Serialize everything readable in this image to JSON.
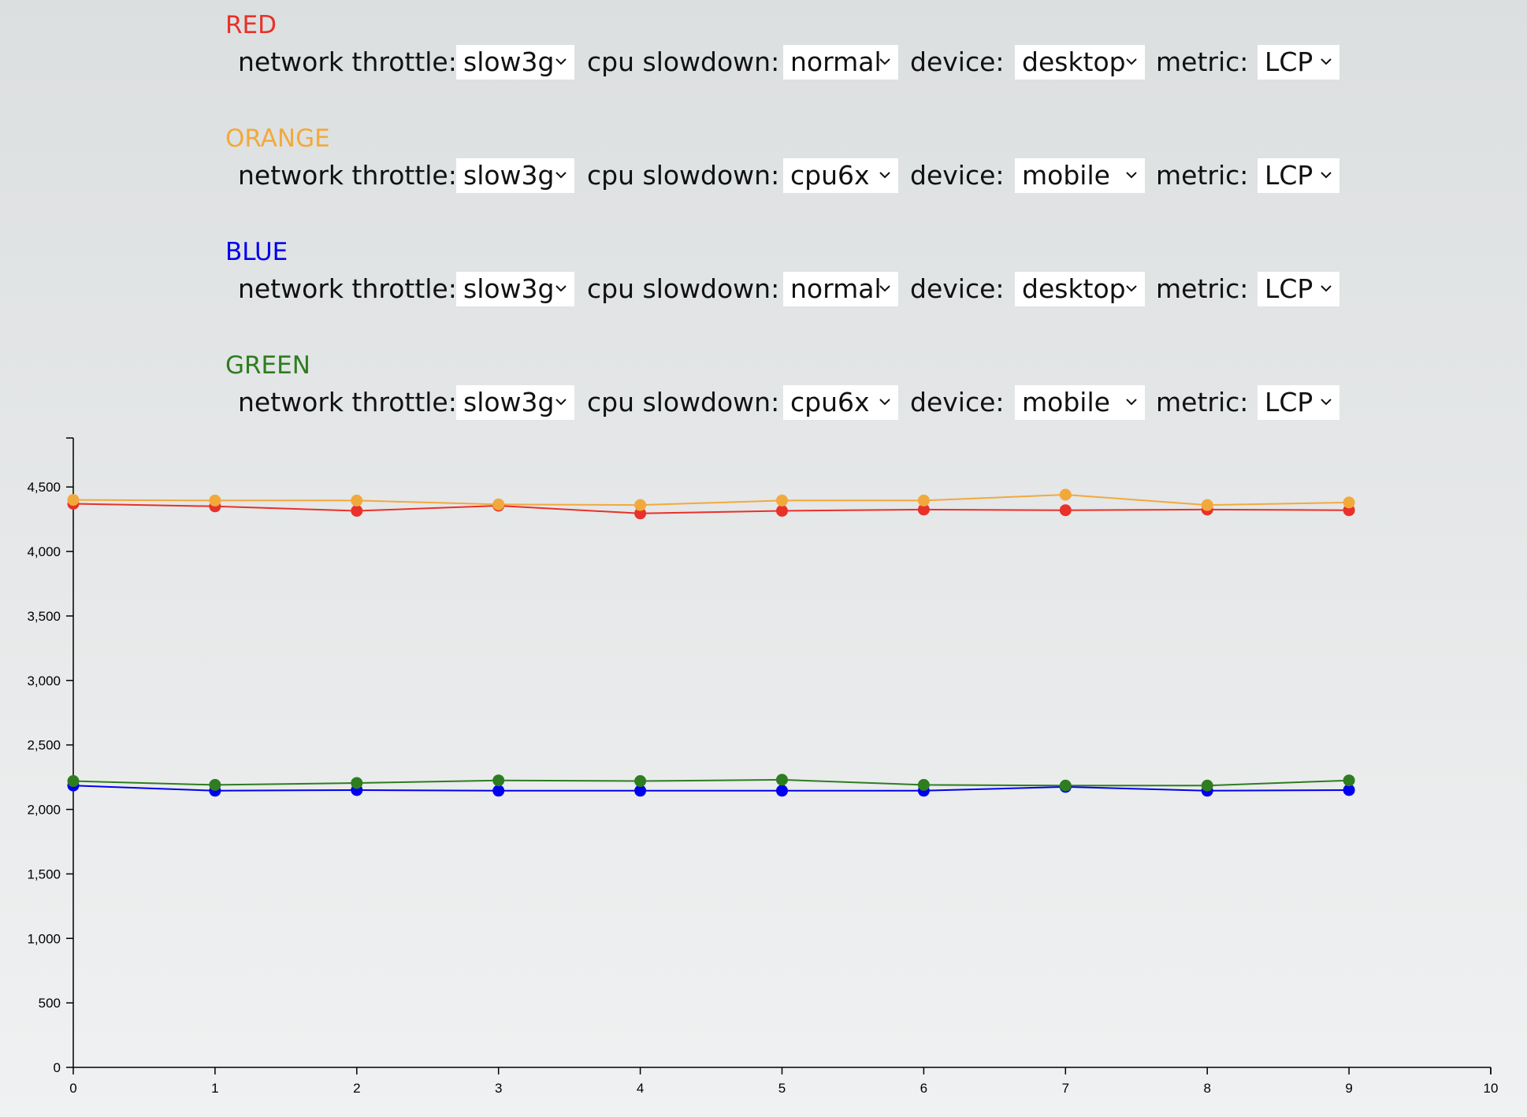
{
  "labels": {
    "network": "network throttle:",
    "cpu": "cpu slowdown:",
    "device": "device:",
    "metric": "metric:"
  },
  "groups": [
    {
      "name": "RED",
      "color": "#e8312a",
      "network": "slow3g",
      "cpu": "normal",
      "device": "desktop",
      "metric": "LCP"
    },
    {
      "name": "ORANGE",
      "color": "#f2a93b",
      "network": "slow3g",
      "cpu": "cpu6x",
      "device": "mobile",
      "metric": "LCP"
    },
    {
      "name": "BLUE",
      "color": "#0000ee",
      "network": "slow3g",
      "cpu": "normal",
      "device": "desktop",
      "metric": "LCP"
    },
    {
      "name": "GREEN",
      "color": "#2e7d1f",
      "network": "slow3g",
      "cpu": "cpu6x",
      "device": "mobile",
      "metric": "LCP"
    }
  ],
  "chart_data": {
    "type": "line",
    "title": "",
    "xlabel": "",
    "ylabel": "",
    "x": [
      0,
      1,
      2,
      3,
      4,
      5,
      6,
      7,
      8,
      9
    ],
    "xlim": [
      0,
      10
    ],
    "ylim": [
      0,
      4880
    ],
    "xticks": [
      0,
      1,
      2,
      3,
      4,
      5,
      6,
      7,
      8,
      9,
      10
    ],
    "yticks": [
      0,
      500,
      1000,
      1500,
      2000,
      2500,
      3000,
      3500,
      4000,
      4500
    ],
    "xtick_labels": [
      "0",
      "1",
      "2",
      "3",
      "4",
      "5",
      "6",
      "7",
      "8",
      "9",
      "10"
    ],
    "ytick_labels": [
      "0",
      "500",
      "1,000",
      "1,500",
      "2,000",
      "2,500",
      "3,000",
      "3,500",
      "4,000",
      "4,500"
    ],
    "grid": false,
    "legend": "none",
    "series": [
      {
        "color": "#e8312a",
        "values": [
          4370,
          4350,
          4315,
          4355,
          4295,
          4315,
          4325,
          4320,
          4325,
          4320
        ]
      },
      {
        "color": "#f2a93b",
        "values": [
          4400,
          4395,
          4395,
          4365,
          4360,
          4395,
          4395,
          4440,
          4360,
          4380
        ]
      },
      {
        "color": "#0000ee",
        "values": [
          2185,
          2145,
          2150,
          2145,
          2145,
          2145,
          2145,
          2175,
          2145,
          2150
        ]
      },
      {
        "color": "#2e7d1f",
        "values": [
          2220,
          2190,
          2205,
          2225,
          2220,
          2230,
          2190,
          2185,
          2185,
          2225
        ]
      }
    ]
  }
}
